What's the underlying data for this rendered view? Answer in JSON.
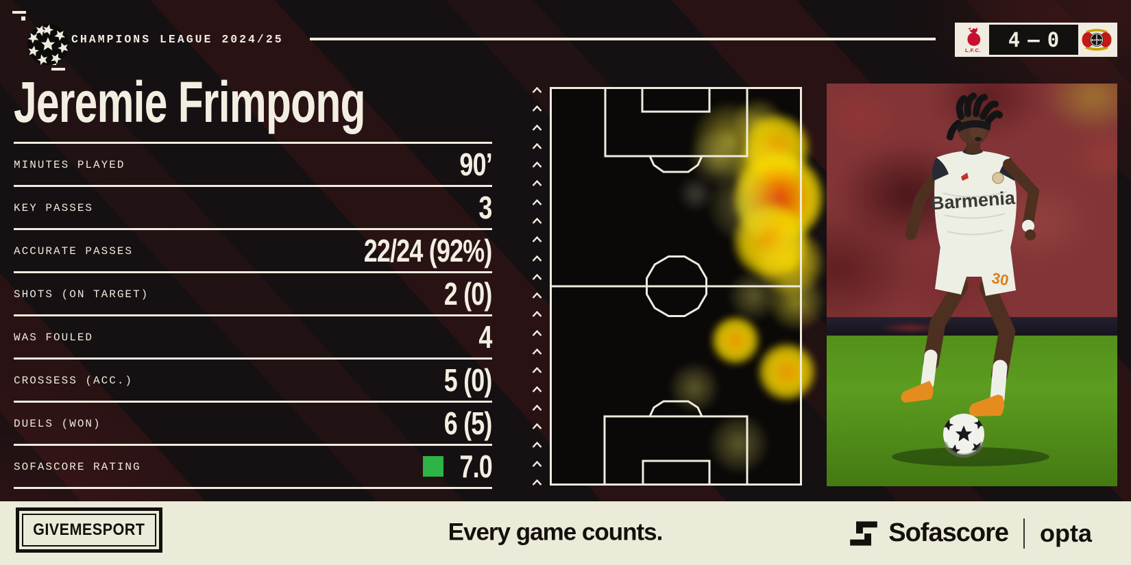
{
  "header": {
    "competition": "CHAMPIONS LEAGUE 2024/25",
    "scoreboard": {
      "home_abbr": "L.F.C.",
      "home_score": "4",
      "separator": "–",
      "away_score": "0",
      "away_crest_text": "BAYER"
    }
  },
  "player": {
    "name": "Jeremie Frimpong"
  },
  "photo": {
    "shirt_sponsor": "Barmenia",
    "shirt_number": "30"
  },
  "chart_data": [
    {
      "type": "table",
      "title": "Jeremie Frimpong",
      "columns": [
        "metric",
        "value"
      ],
      "rows": [
        {
          "label": "MINUTES PLAYED",
          "value": "90’"
        },
        {
          "label": "KEY PASSES",
          "value": "3"
        },
        {
          "label": "ACCURATE PASSES",
          "value": "22/24 (92%)"
        },
        {
          "label": "SHOTS (ON TARGET)",
          "value": "2 (0)"
        },
        {
          "label": "WAS FOULED",
          "value": "4"
        },
        {
          "label": "CROSSESS (ACC.)",
          "value": "5 (0)"
        },
        {
          "label": "DUELS (WON)",
          "value": "6 (5)"
        },
        {
          "label": "SOFASCORE RATING",
          "value": "7.0",
          "badge_color": "#2eb347"
        }
      ]
    },
    {
      "type": "heatmap",
      "description": "Touch heatmap on vertical football pitch, activity concentrated high on the right flank",
      "pitch_orientation": "vertical, attacking toward top",
      "points": [
        {
          "x": 0.715,
          "y": 0.134,
          "r": 40,
          "heat": 0.45
        },
        {
          "x": 0.668,
          "y": 0.177,
          "r": 30,
          "heat": 0.35
        },
        {
          "x": 0.826,
          "y": 0.091,
          "r": 26,
          "heat": 0.5
        },
        {
          "x": 0.899,
          "y": 0.153,
          "r": 36,
          "heat": 0.88
        },
        {
          "x": 0.859,
          "y": 0.211,
          "r": 34,
          "heat": 0.75
        },
        {
          "x": 0.908,
          "y": 0.278,
          "r": 48,
          "heat": 1.0
        },
        {
          "x": 0.875,
          "y": 0.387,
          "r": 40,
          "heat": 0.8
        },
        {
          "x": 0.777,
          "y": 0.297,
          "r": 40,
          "heat": 0.3
        },
        {
          "x": 0.579,
          "y": 0.268,
          "r": 20,
          "heat": 0.15
        },
        {
          "x": 0.952,
          "y": 0.44,
          "r": 36,
          "heat": 0.75
        },
        {
          "x": 0.978,
          "y": 0.538,
          "r": 30,
          "heat": 0.5
        },
        {
          "x": 0.807,
          "y": 0.524,
          "r": 26,
          "heat": 0.3
        },
        {
          "x": 0.736,
          "y": 0.636,
          "r": 26,
          "heat": 0.9
        },
        {
          "x": 0.94,
          "y": 0.715,
          "r": 31,
          "heat": 0.9
        },
        {
          "x": 0.573,
          "y": 0.754,
          "r": 26,
          "heat": 0.25
        },
        {
          "x": 0.75,
          "y": 0.895,
          "r": 31,
          "heat": 0.3
        }
      ]
    }
  ],
  "footer": {
    "brand": "GIVEMESPORT",
    "tagline": "Every game counts.",
    "sofascore": "Sofascore",
    "opta": "opta"
  },
  "icons": {
    "league": "ucl-starball",
    "home": "liverpool-liver-bird",
    "away": "bayer-leverkusen-crest",
    "rating": "green-square",
    "provider": "sofascore-block-s",
    "arrows": "upward-chevron-strip"
  },
  "colors": {
    "canvas_bg": "#151011",
    "stripe_red": "#7a1c21",
    "cream": "#f0ece0",
    "footer_bg": "#ecead9",
    "footer_text": "#14110c",
    "rating_green": "#2eb347",
    "heat_red": "#e9460f",
    "heat_orange": "#f59b00",
    "heat_yellow": "#f2d800",
    "liverpool_red": "#c8102e",
    "leverkusen_red": "#c41818",
    "boot_orange": "#e68c1e"
  }
}
